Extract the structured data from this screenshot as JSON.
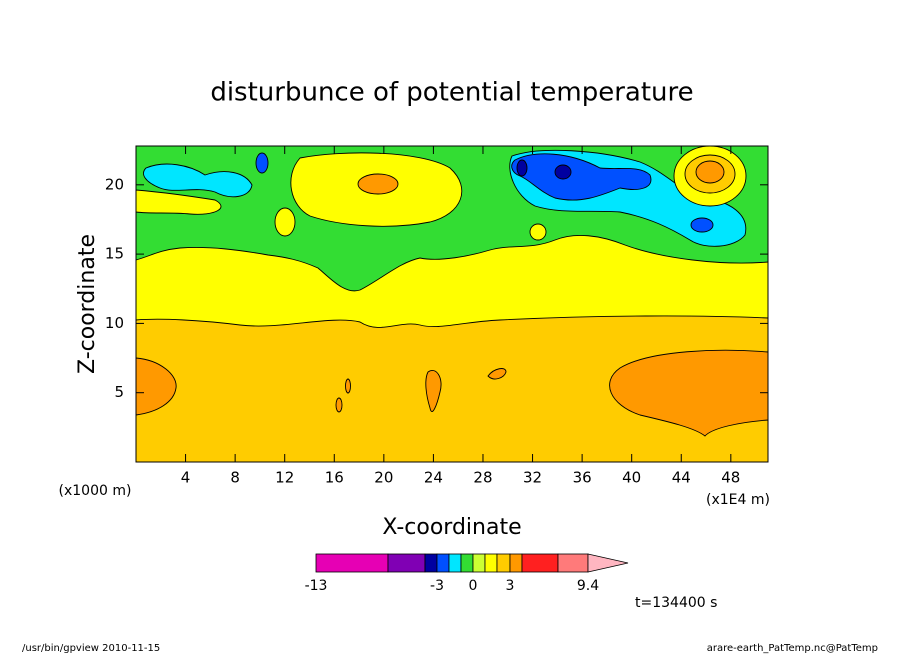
{
  "chart_data": {
    "type": "contour",
    "title": "disturbunce of potential temperature",
    "xlabel": "X-coordinate",
    "ylabel": "Z-coordinate",
    "yunit": "(x1000 m)",
    "xunit": "(x1E4 m)",
    "xlim": [
      0,
      51
    ],
    "xticks": [
      4,
      8,
      12,
      16,
      20,
      24,
      28,
      32,
      36,
      40,
      44,
      48
    ],
    "ylim": [
      0,
      22.8
    ],
    "yticks": [
      5,
      10,
      15,
      20
    ],
    "colorbar": {
      "levels": [
        -13,
        -8,
        -4,
        -3,
        -2,
        -1,
        0,
        1,
        2,
        3,
        4,
        7,
        9.4
      ],
      "colors": [
        "#e600b4",
        "#8000b4",
        "#0000a0",
        "#0050ff",
        "#00e6ff",
        "#33dd33",
        "#ccff33",
        "#ffff00",
        "#ffcc00",
        "#ff9900",
        "#ff2020",
        "#ff7a7a"
      ],
      "extend_color": "#ffb6c1",
      "ticks": [
        -13,
        -3,
        0,
        3,
        9.4
      ]
    },
    "time_label": "t=134400 s",
    "footer_left": "/usr/bin/gpview  2010-11-15",
    "footer_right": "arare-earth_PatTemp.nc@PatTemp"
  }
}
